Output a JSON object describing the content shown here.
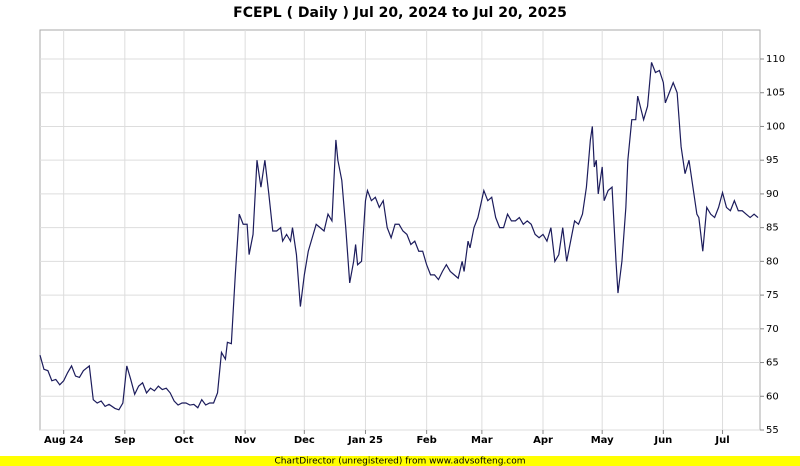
{
  "chart_data": {
    "type": "line",
    "title": "FCEPL ( Daily ) Jul 20, 2024 to Jul 20, 2025",
    "x": [
      0,
      2,
      4,
      6,
      8,
      10,
      12,
      14,
      16,
      18,
      20,
      22,
      25,
      27,
      29,
      31,
      33,
      35,
      38,
      40,
      42,
      44,
      46,
      48,
      50,
      52,
      54,
      56,
      58,
      60,
      62,
      64,
      66,
      68,
      70,
      72,
      74,
      76,
      78,
      80,
      82,
      84,
      86,
      88,
      90,
      92,
      94,
      95,
      97,
      99,
      101,
      103,
      105,
      106,
      108,
      110,
      112,
      114,
      116,
      118,
      120,
      122,
      123,
      125,
      127,
      128,
      130,
      132,
      134,
      136,
      138,
      140,
      142,
      144,
      146,
      148,
      150,
      151,
      153,
      155,
      157,
      159,
      160,
      161,
      163,
      165,
      166,
      168,
      170,
      172,
      174,
      176,
      178,
      180,
      182,
      184,
      186,
      188,
      190,
      192,
      194,
      196,
      198,
      200,
      202,
      204,
      206,
      208,
      210,
      212,
      214,
      215,
      217,
      218,
      220,
      222,
      225,
      227,
      229,
      231,
      233,
      235,
      237,
      239,
      241,
      243,
      245,
      247,
      249,
      251,
      253,
      255,
      257,
      259,
      261,
      263,
      265,
      267,
      269,
      271,
      273,
      275,
      277,
      279,
      280,
      281,
      282,
      283,
      285,
      286,
      288,
      290,
      292,
      293,
      295,
      297,
      298,
      300,
      302,
      303,
      306,
      308,
      310,
      312,
      314,
      316,
      317,
      319,
      321,
      323,
      325,
      327,
      329,
      331,
      333,
      334,
      336,
      338,
      340,
      342,
      344,
      346,
      348,
      350,
      352,
      354,
      356,
      358,
      360,
      362,
      364
    ],
    "values": [
      66.1,
      64,
      63.8,
      62.3,
      62.5,
      61.7,
      62.3,
      63.5,
      64.5,
      63,
      62.8,
      63.8,
      64.5,
      59.5,
      59,
      59.3,
      58.5,
      58.8,
      58.2,
      58,
      59,
      64.5,
      62.5,
      60.3,
      61.5,
      62,
      60.5,
      61.2,
      60.8,
      61.5,
      61,
      61.2,
      60.5,
      59.3,
      58.7,
      59,
      59,
      58.7,
      58.8,
      58.3,
      59.5,
      58.7,
      59,
      59,
      60.5,
      66.5,
      65.5,
      68,
      67.8,
      78,
      87,
      85.5,
      85.5,
      81,
      84,
      95,
      91,
      95,
      90,
      84.5,
      84.5,
      85,
      83,
      84,
      83,
      85,
      81,
      73.3,
      78,
      81.5,
      83.5,
      85.5,
      85,
      84.5,
      87,
      86,
      98,
      95,
      92,
      85,
      76.8,
      80,
      82.5,
      79.5,
      80,
      89,
      90.5,
      89,
      89.5,
      88,
      89,
      85,
      83.5,
      85.5,
      85.5,
      84.5,
      84,
      82.5,
      83,
      81.5,
      81.5,
      79.5,
      78,
      78,
      77.3,
      78.5,
      79.5,
      78.5,
      78,
      77.5,
      80,
      78.5,
      83,
      82,
      85,
      86.5,
      90.5,
      89,
      89.5,
      86.5,
      85,
      85,
      87,
      86,
      86,
      86.5,
      85.5,
      86,
      85.5,
      84,
      83.5,
      84,
      83,
      85,
      80,
      81,
      85,
      80,
      83,
      86,
      85.5,
      87,
      91,
      98,
      100,
      94,
      95,
      90,
      94,
      89,
      90.5,
      91,
      80,
      75.3,
      80,
      88,
      95,
      101,
      101,
      104.5,
      101,
      103,
      109.5,
      108,
      108.3,
      106.5,
      103.5,
      105,
      106.5,
      105,
      97,
      93,
      95,
      91,
      87,
      86.5,
      81.5,
      88,
      87,
      86.5,
      88,
      90.2,
      88,
      87.5,
      89,
      87.5,
      87.5,
      87,
      86.5,
      87,
      86.5
    ],
    "color": "#1c1c5c",
    "xlim": [
      0,
      365
    ],
    "xticks": [
      {
        "value": 12,
        "label": "Aug 24"
      },
      {
        "value": 43,
        "label": "Sep"
      },
      {
        "value": 73,
        "label": "Oct"
      },
      {
        "value": 104,
        "label": "Nov"
      },
      {
        "value": 134,
        "label": "Dec"
      },
      {
        "value": 165,
        "label": "Jan 25"
      },
      {
        "value": 196,
        "label": "Feb"
      },
      {
        "value": 224,
        "label": "Mar"
      },
      {
        "value": 255,
        "label": "Apr"
      },
      {
        "value": 285,
        "label": "May"
      },
      {
        "value": 316,
        "label": "Jun"
      },
      {
        "value": 346,
        "label": "Jul"
      }
    ],
    "ylim": [
      55,
      114.3
    ],
    "yticks": [
      55,
      60,
      65,
      70,
      75,
      80,
      85,
      90,
      95,
      100,
      105,
      110
    ],
    "grid": true
  },
  "footer": "ChartDirector (unregistered) from www.advsofteng.com"
}
